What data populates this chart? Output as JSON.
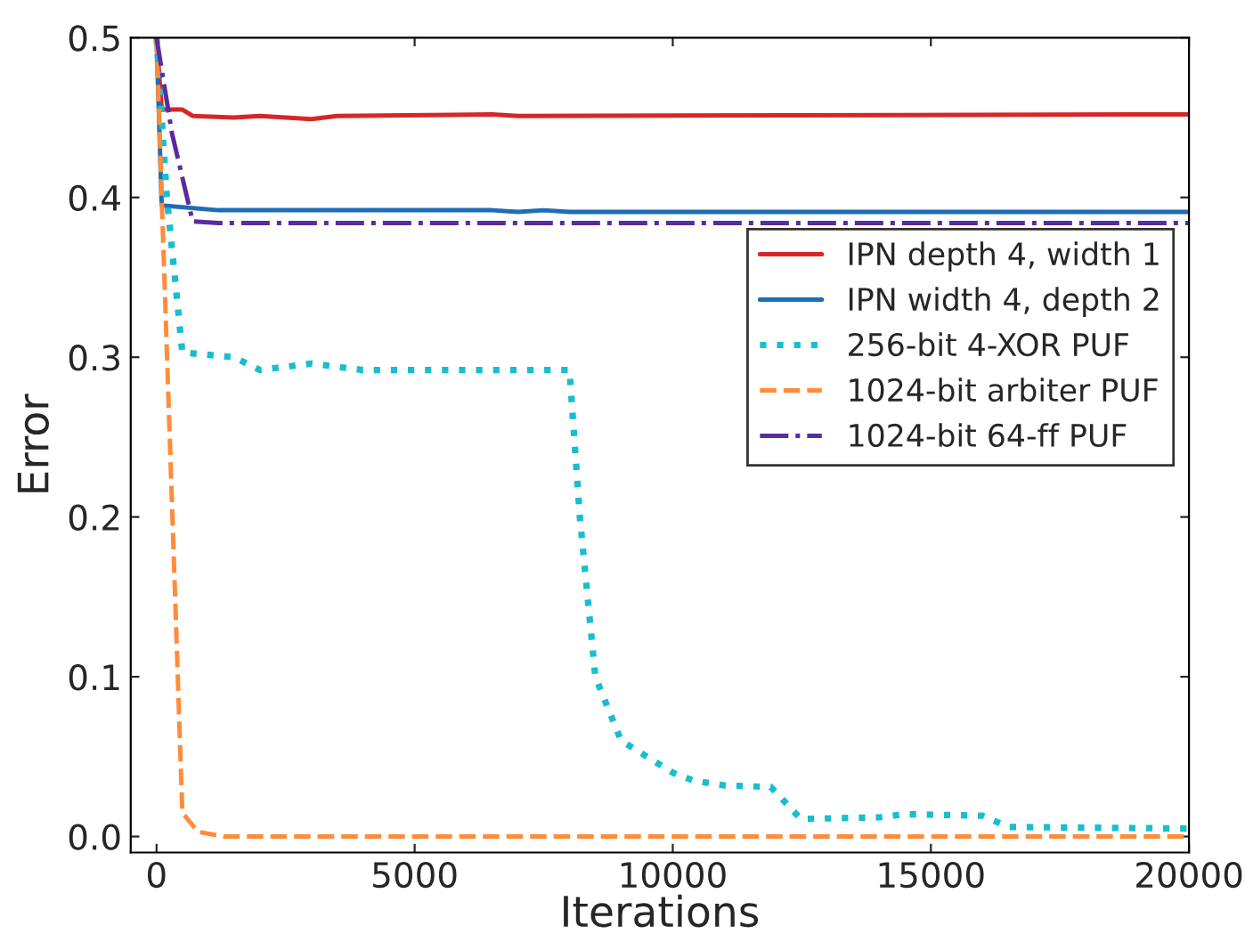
{
  "chart_data": {
    "type": "line",
    "xlabel": "Iterations",
    "ylabel": "Error",
    "xlim": [
      -500,
      20000
    ],
    "ylim": [
      -0.01,
      0.5
    ],
    "xticks": [
      0,
      5000,
      10000,
      15000,
      20000
    ],
    "yticks": [
      {
        "value": 0,
        "label": "0.0"
      },
      0.1,
      0.2,
      0.3,
      0.4,
      0.5
    ],
    "grid": false,
    "legend": "right",
    "series": [
      {
        "name": "IPN depth 4, width 1",
        "color": "#d62728",
        "line_style": "solid",
        "x": [
          0,
          100,
          500,
          700,
          1500,
          2000,
          3000,
          3500,
          6500,
          7000,
          20000
        ],
        "values": [
          0.5,
          0.455,
          0.455,
          0.451,
          0.45,
          0.451,
          0.449,
          0.451,
          0.452,
          0.451,
          0.452
        ]
      },
      {
        "name": "IPN width 4, depth 2",
        "color": "#1f6db5",
        "line_style": "solid",
        "x": [
          0,
          100,
          1200,
          6500,
          7000,
          7500,
          8000,
          18000,
          20000
        ],
        "values": [
          0.5,
          0.395,
          0.392,
          0.392,
          0.391,
          0.392,
          0.391,
          0.391,
          0.391
        ]
      },
      {
        "name": "256-bit 4-XOR PUF",
        "color": "#17becf",
        "line_style": "dotted",
        "x": [
          0,
          200,
          500,
          1500,
          2000,
          3000,
          4000,
          8000,
          8200,
          8500,
          9000,
          9500,
          10000,
          10400,
          11000,
          11900,
          12480,
          14000,
          14500,
          16000,
          16500,
          20000
        ],
        "values": [
          0.5,
          0.4,
          0.303,
          0.3,
          0.292,
          0.296,
          0.292,
          0.292,
          0.2,
          0.1,
          0.06,
          0.05,
          0.04,
          0.035,
          0.032,
          0.031,
          0.011,
          0.012,
          0.014,
          0.013,
          0.006,
          0.005
        ]
      },
      {
        "name": "1024-bit arbiter PUF",
        "color": "#ff8c3a",
        "line_style": "dashed",
        "x": [
          0,
          100,
          500,
          800,
          1300,
          20000
        ],
        "values": [
          0.5,
          0.4,
          0.015,
          0.003,
          0.0,
          0.0
        ]
      },
      {
        "name": "1024-bit 64-ff PUF",
        "color": "#5a2ca0",
        "line_style": "dashdot",
        "x": [
          0,
          300,
          700,
          1200,
          20000
        ],
        "values": [
          0.5,
          0.44,
          0.385,
          0.384,
          0.384
        ]
      }
    ]
  }
}
